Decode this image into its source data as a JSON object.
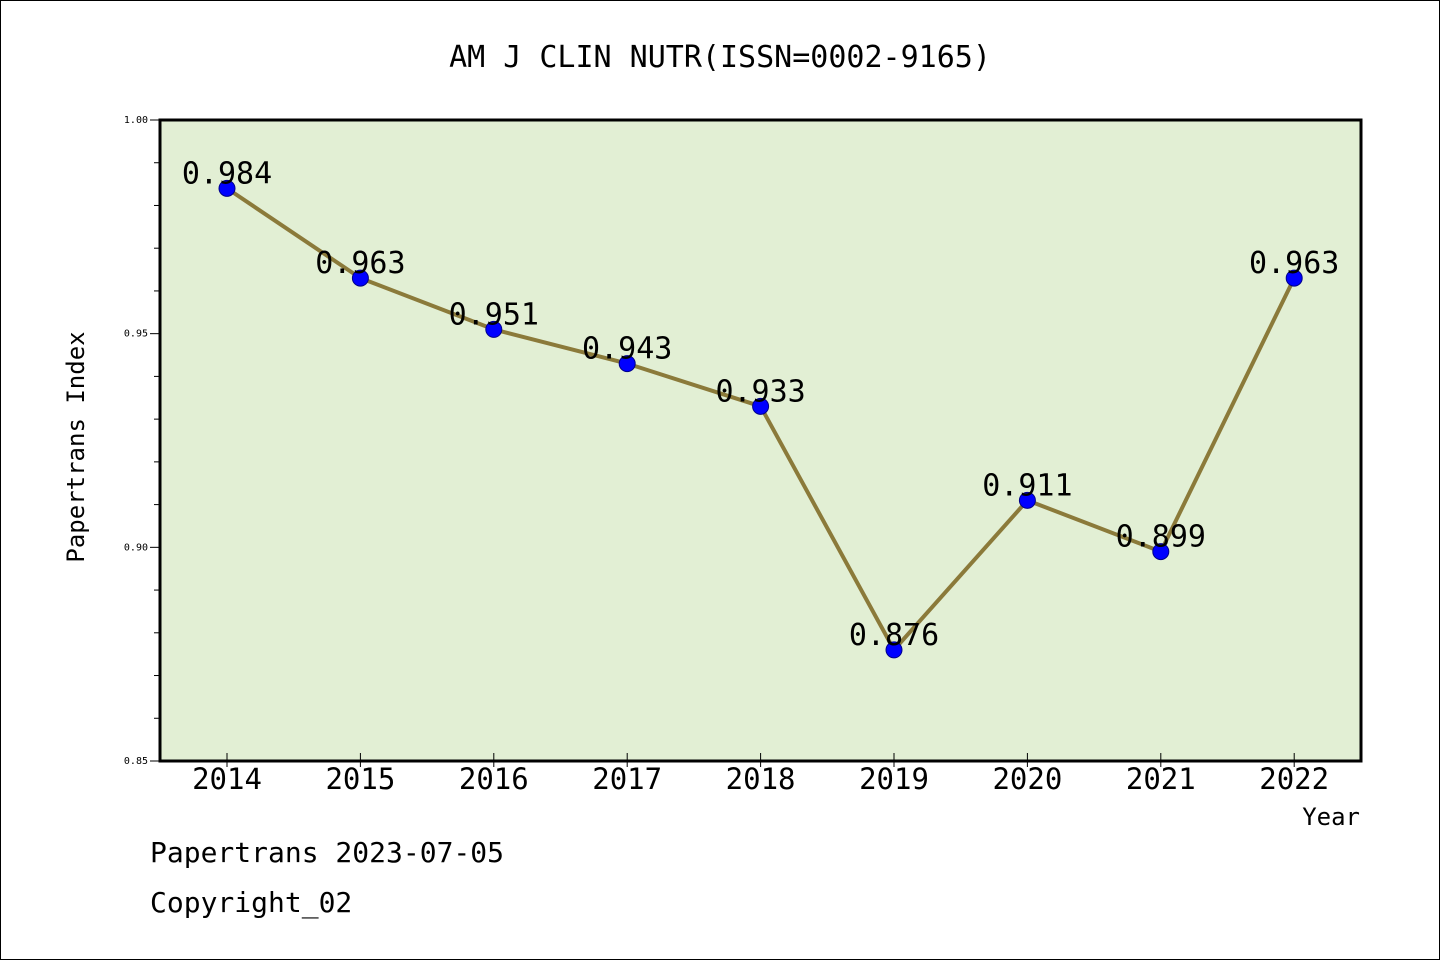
{
  "chart_data": {
    "type": "line",
    "title": "AM J CLIN NUTR(ISSN=0002-9165)",
    "xlabel": "Year",
    "ylabel": "Papertrans Index",
    "categories": [
      "2014",
      "2015",
      "2016",
      "2017",
      "2018",
      "2019",
      "2020",
      "2021",
      "2022"
    ],
    "series": [
      {
        "values": [
          0.984,
          0.963,
          0.951,
          0.943,
          0.933,
          0.876,
          0.911,
          0.899,
          0.963
        ],
        "data_labels": [
          "0.984",
          "0.963",
          "0.951",
          "0.943",
          "0.933",
          "0.876",
          "0.911",
          "0.899",
          "0.963"
        ]
      }
    ],
    "ylim": [
      0.85,
      1.0
    ],
    "yticks": [
      0.85,
      0.9,
      0.95,
      1.0
    ],
    "ytick_labels": [
      "0.85",
      "0.90",
      "0.95",
      "1.00"
    ],
    "grid": false,
    "legend": "none",
    "colors": {
      "plot_background": "#e2efd4",
      "line": "#8b7a3a",
      "marker": "#0000ff",
      "axis": "#000000"
    }
  },
  "footer": {
    "line1": "Papertrans 2023-07-05",
    "line2": "Copyright_02"
  }
}
